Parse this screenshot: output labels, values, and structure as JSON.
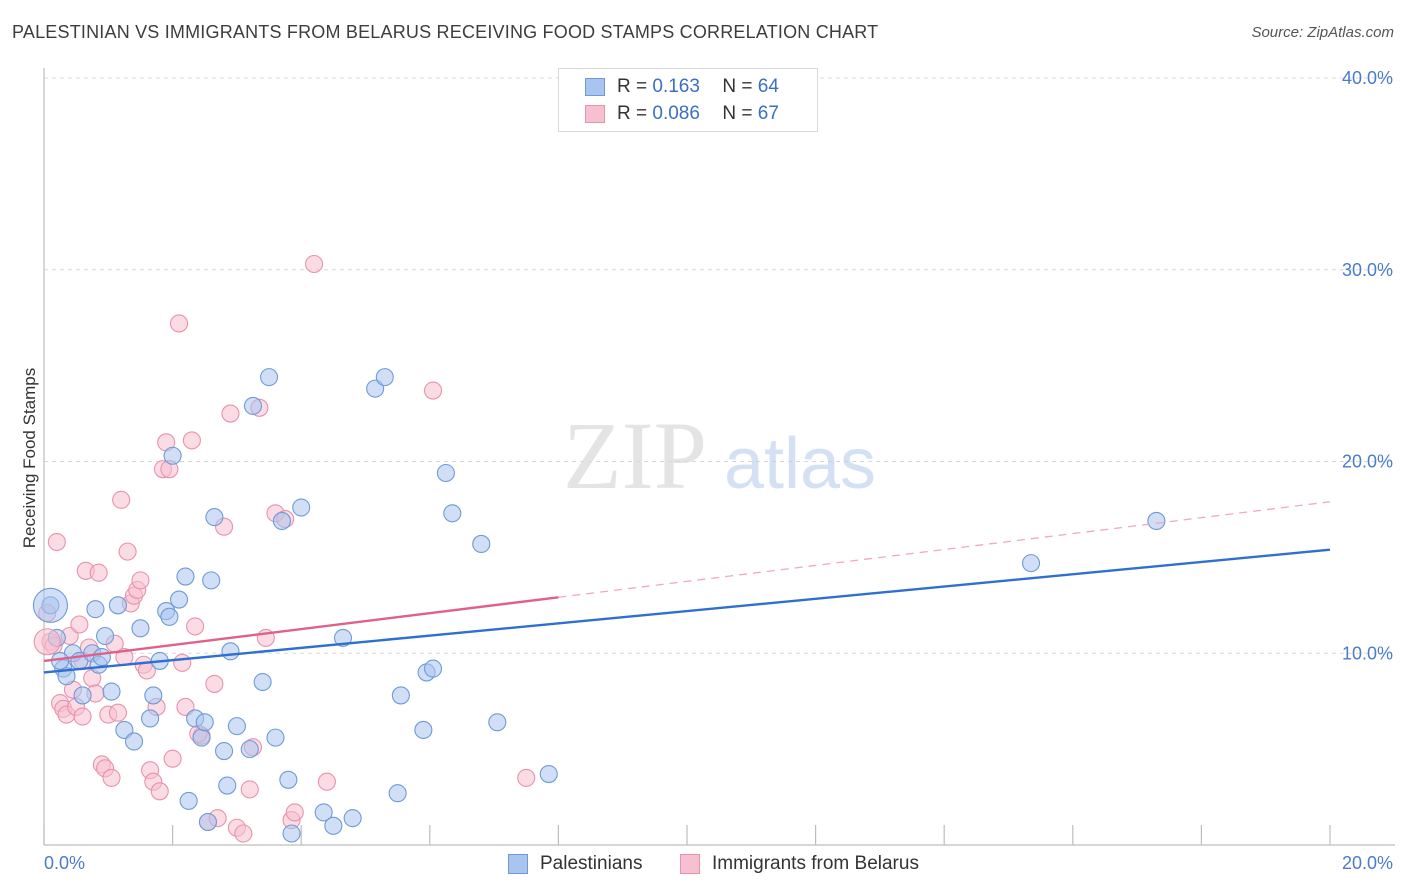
{
  "header": {
    "title": "PALESTINIAN VS IMMIGRANTS FROM BELARUS RECEIVING FOOD STAMPS CORRELATION CHART",
    "source": "Source: ZipAtlas.com"
  },
  "watermark": {
    "zip": "ZIP",
    "atlas": "atlas"
  },
  "stats_legend": [
    {
      "r_label": "R =",
      "r_value": "0.163",
      "n_label": "N =",
      "n_value": "64",
      "color": "#a9c5ef",
      "border": "#6f9ad8"
    },
    {
      "r_label": "R =",
      "r_value": "0.086",
      "n_label": "N =",
      "n_value": "67",
      "color": "#f7c0d0",
      "border": "#e892ab"
    }
  ],
  "chart_data": {
    "type": "scatter",
    "title": "PALESTINIAN VS IMMIGRANTS FROM BELARUS RECEIVING FOOD STAMPS CORRELATION CHART",
    "xlabel": "",
    "ylabel": "Receiving Food Stamps",
    "xlim": [
      0,
      20
    ],
    "ylim": [
      0,
      40
    ],
    "x_tick_labels": [
      "0.0%",
      "20.0%"
    ],
    "y_tick_labels": [
      "10.0%",
      "20.0%",
      "30.0%",
      "40.0%"
    ],
    "y_ticks": [
      10,
      20,
      30,
      40
    ],
    "grid": true,
    "series": [
      {
        "name": "Palestinians",
        "color": "#a9c5ef",
        "stroke": "#6f9ad8",
        "line_color": "#2f6fd0",
        "trend": {
          "x0": 0,
          "y0": 9.0,
          "x1": 20,
          "y1": 15.4,
          "dashed_from": null
        },
        "points": [
          [
            0.1,
            12.5
          ],
          [
            0.2,
            10.8
          ],
          [
            0.3,
            9.2
          ],
          [
            0.35,
            8.8
          ],
          [
            0.45,
            10.0
          ],
          [
            0.55,
            9.6
          ],
          [
            0.6,
            7.8
          ],
          [
            0.75,
            10.0
          ],
          [
            0.8,
            12.3
          ],
          [
            0.85,
            9.4
          ],
          [
            0.95,
            10.9
          ],
          [
            1.05,
            8.0
          ],
          [
            1.15,
            12.5
          ],
          [
            1.25,
            6.0
          ],
          [
            1.4,
            5.4
          ],
          [
            1.5,
            11.3
          ],
          [
            1.65,
            6.6
          ],
          [
            1.7,
            7.8
          ],
          [
            1.8,
            9.6
          ],
          [
            1.9,
            12.2
          ],
          [
            1.95,
            11.9
          ],
          [
            2.0,
            20.3
          ],
          [
            2.1,
            12.8
          ],
          [
            2.2,
            14.0
          ],
          [
            2.25,
            2.3
          ],
          [
            2.35,
            6.6
          ],
          [
            2.45,
            5.6
          ],
          [
            2.5,
            6.4
          ],
          [
            2.6,
            13.8
          ],
          [
            2.65,
            17.1
          ],
          [
            2.8,
            4.9
          ],
          [
            2.85,
            3.1
          ],
          [
            2.9,
            10.1
          ],
          [
            3.0,
            6.2
          ],
          [
            3.2,
            5.0
          ],
          [
            3.25,
            22.9
          ],
          [
            3.4,
            8.5
          ],
          [
            3.5,
            24.4
          ],
          [
            3.6,
            5.6
          ],
          [
            3.7,
            16.9
          ],
          [
            3.8,
            3.4
          ],
          [
            3.85,
            0.6
          ],
          [
            4.0,
            17.6
          ],
          [
            4.35,
            1.7
          ],
          [
            4.5,
            1.0
          ],
          [
            4.65,
            10.8
          ],
          [
            4.8,
            1.4
          ],
          [
            5.15,
            23.8
          ],
          [
            5.3,
            24.4
          ],
          [
            5.5,
            2.7
          ],
          [
            5.55,
            7.8
          ],
          [
            5.9,
            6.0
          ],
          [
            5.95,
            9.0
          ],
          [
            6.05,
            9.2
          ],
          [
            6.25,
            19.4
          ],
          [
            6.35,
            17.3
          ],
          [
            6.8,
            15.7
          ],
          [
            7.05,
            6.4
          ],
          [
            7.85,
            3.7
          ],
          [
            15.35,
            14.7
          ],
          [
            17.3,
            16.9
          ],
          [
            0.25,
            9.6
          ],
          [
            0.9,
            9.8
          ],
          [
            2.55,
            1.2
          ]
        ]
      },
      {
        "name": "Immigrants from Belarus",
        "color": "#f7c0d0",
        "stroke": "#e892ab",
        "line_color": "#e0608c",
        "trend": {
          "x0": 0,
          "y0": 9.6,
          "x1": 20,
          "y1": 17.9,
          "solid_until": 8
        },
        "points": [
          [
            0.05,
            12.1
          ],
          [
            0.1,
            10.6
          ],
          [
            0.15,
            10.4
          ],
          [
            0.2,
            15.8
          ],
          [
            0.25,
            7.4
          ],
          [
            0.3,
            7.1
          ],
          [
            0.35,
            6.8
          ],
          [
            0.4,
            10.9
          ],
          [
            0.45,
            8.1
          ],
          [
            0.5,
            7.2
          ],
          [
            0.55,
            11.5
          ],
          [
            0.6,
            9.6
          ],
          [
            0.65,
            14.3
          ],
          [
            0.7,
            10.3
          ],
          [
            0.75,
            8.7
          ],
          [
            0.8,
            7.9
          ],
          [
            0.85,
            14.2
          ],
          [
            0.9,
            4.2
          ],
          [
            0.95,
            4.0
          ],
          [
            1.0,
            6.8
          ],
          [
            1.05,
            3.5
          ],
          [
            1.1,
            10.5
          ],
          [
            1.15,
            6.9
          ],
          [
            1.2,
            18.0
          ],
          [
            1.3,
            15.3
          ],
          [
            1.35,
            12.6
          ],
          [
            1.4,
            13.0
          ],
          [
            1.45,
            13.3
          ],
          [
            1.5,
            13.8
          ],
          [
            1.55,
            9.4
          ],
          [
            1.6,
            9.1
          ],
          [
            1.65,
            3.9
          ],
          [
            1.7,
            3.3
          ],
          [
            1.75,
            7.2
          ],
          [
            1.8,
            2.8
          ],
          [
            1.85,
            19.6
          ],
          [
            1.9,
            21.0
          ],
          [
            1.95,
            19.6
          ],
          [
            2.0,
            4.5
          ],
          [
            2.1,
            27.2
          ],
          [
            2.15,
            9.5
          ],
          [
            2.2,
            7.2
          ],
          [
            2.3,
            21.1
          ],
          [
            2.35,
            11.4
          ],
          [
            2.45,
            5.7
          ],
          [
            2.55,
            1.2
          ],
          [
            2.65,
            8.4
          ],
          [
            2.7,
            1.4
          ],
          [
            2.8,
            16.6
          ],
          [
            2.9,
            22.5
          ],
          [
            3.0,
            0.9
          ],
          [
            3.1,
            0.6
          ],
          [
            3.2,
            2.9
          ],
          [
            3.25,
            5.1
          ],
          [
            3.35,
            22.8
          ],
          [
            3.45,
            10.8
          ],
          [
            3.6,
            17.3
          ],
          [
            3.75,
            17.0
          ],
          [
            3.85,
            1.3
          ],
          [
            3.9,
            1.7
          ],
          [
            4.2,
            30.3
          ],
          [
            4.4,
            3.3
          ],
          [
            6.05,
            23.7
          ],
          [
            7.5,
            3.5
          ],
          [
            0.6,
            6.7
          ],
          [
            1.25,
            9.8
          ],
          [
            2.4,
            5.8
          ]
        ]
      }
    ]
  },
  "bottom_legend": [
    {
      "label": "Palestinians",
      "color": "#a9c5ef",
      "border": "#6f9ad8"
    },
    {
      "label": "Immigrants from Belarus",
      "color": "#f7c0d0",
      "border": "#e892ab"
    }
  ]
}
